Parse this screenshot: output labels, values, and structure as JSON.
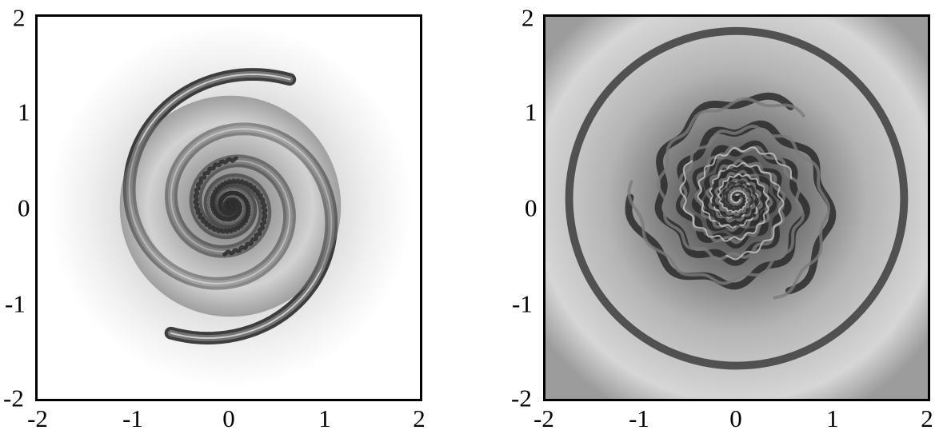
{
  "figure": {
    "panels": [
      {
        "id": "left",
        "description_icon": "spiral-field-image",
        "x_ticks": [
          "-2",
          "-1",
          "0",
          "1",
          "2"
        ],
        "y_ticks": [
          "2",
          "1",
          "0",
          "-1",
          "-2"
        ],
        "xlim": [
          -2,
          2
        ],
        "ylim": [
          -2,
          2
        ]
      },
      {
        "id": "right",
        "description_icon": "turbulent-spiral-image",
        "x_ticks": [
          "-2",
          "-1",
          "0",
          "1",
          "2"
        ],
        "y_ticks": [
          "2",
          "1",
          "0",
          "-1",
          "-2"
        ],
        "xlim": [
          -2,
          2
        ],
        "ylim": [
          -2,
          2
        ]
      }
    ],
    "colors": {
      "frame": "#000000",
      "dark": "#2a2a2a",
      "mid": "#7a7a7a",
      "light": "#d8d8d8",
      "background": "#ffffff"
    }
  }
}
